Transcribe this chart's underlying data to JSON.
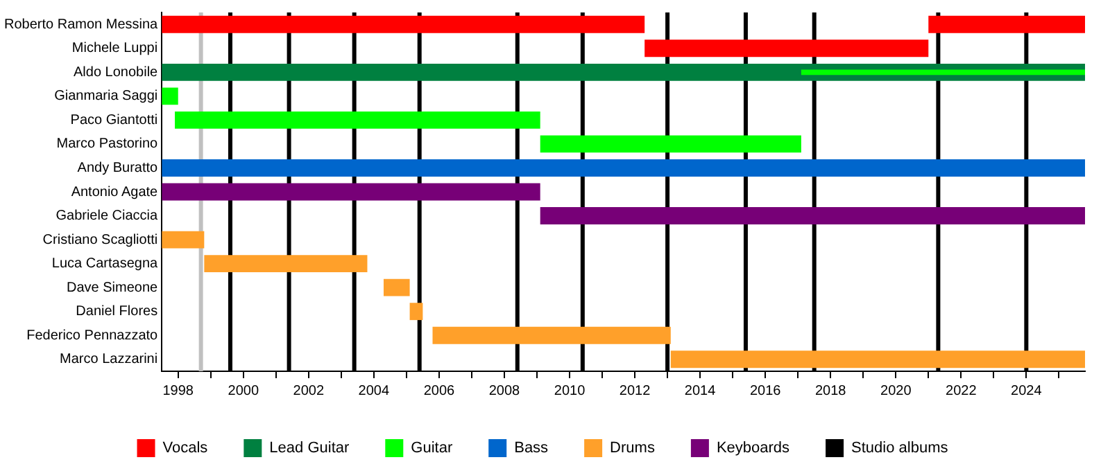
{
  "chart_data": {
    "type": "bar",
    "orientation": "horizontal",
    "categories": [
      "Roberto Ramon Messina",
      "Michele Luppi",
      "Aldo Lonobile",
      "Gianmaria Saggi",
      "Paco Giantotti",
      "Marco Pastorino",
      "Andy Buratto",
      "Antonio Agate",
      "Gabriele Ciaccia",
      "Cristiano Scagliotti",
      "Luca Cartasegna",
      "Dave Simeone",
      "Daniel Flores",
      "Federico Pennazzato",
      "Marco Lazzarini"
    ],
    "series": [
      {
        "name": "Vocals",
        "color": "#ff0000",
        "base": [
          1997.5,
          2012.3,
          null,
          null,
          null,
          null,
          null,
          null,
          null,
          null,
          null,
          null,
          null,
          null,
          null
        ],
        "values": [
          14.8,
          8.7,
          null,
          null,
          null,
          null,
          null,
          null,
          null,
          null,
          null,
          null,
          null,
          null,
          null
        ]
      },
      {
        "color": "#ff0000",
        "base": [
          2021.0,
          null,
          null,
          null,
          null,
          null,
          null,
          null,
          null,
          null,
          null,
          null,
          null,
          null,
          null
        ],
        "values": [
          4.8,
          null,
          null,
          null,
          null,
          null,
          null,
          null,
          null,
          null,
          null,
          null,
          null,
          null,
          null
        ]
      },
      {
        "name": "Lead Guitar",
        "color": "#008040",
        "base": [
          null,
          null,
          1997.5,
          null,
          null,
          null,
          null,
          null,
          null,
          null,
          null,
          null,
          null,
          null,
          null
        ],
        "values": [
          null,
          null,
          28.3,
          null,
          null,
          null,
          null,
          null,
          null,
          null,
          null,
          null,
          null,
          null,
          null
        ]
      },
      {
        "name": "Guitar",
        "color": "#00ff00",
        "base": [
          null,
          null,
          2017.1,
          1997.5,
          1997.9,
          2009.1,
          null,
          null,
          null,
          null,
          null,
          null,
          null,
          null,
          null
        ],
        "values": [
          null,
          null,
          8.7,
          0.5,
          11.2,
          8.0,
          null,
          null,
          null,
          null,
          null,
          null,
          null,
          null,
          null
        ]
      },
      {
        "name": "Bass",
        "color": "#0066cc",
        "base": [
          null,
          null,
          null,
          null,
          null,
          null,
          1997.5,
          null,
          null,
          null,
          null,
          null,
          null,
          null,
          null
        ],
        "values": [
          null,
          null,
          null,
          null,
          null,
          null,
          28.3,
          null,
          null,
          null,
          null,
          null,
          null,
          null,
          null
        ]
      },
      {
        "name": "Drums",
        "color": "#ffa02a",
        "base": [
          null,
          null,
          null,
          null,
          null,
          null,
          null,
          null,
          null,
          1997.5,
          1998.8,
          2004.3,
          2005.1,
          2005.8,
          2013.1
        ],
        "values": [
          null,
          null,
          null,
          null,
          null,
          null,
          null,
          null,
          null,
          1.3,
          5.0,
          0.8,
          0.4,
          7.3,
          12.7
        ]
      },
      {
        "name": "Keyboards",
        "color": "#770077",
        "base": [
          null,
          null,
          null,
          null,
          null,
          null,
          null,
          1997.5,
          2009.1,
          null,
          null,
          null,
          null,
          null,
          null
        ],
        "values": [
          null,
          null,
          null,
          null,
          null,
          null,
          null,
          11.6,
          16.7,
          null,
          null,
          null,
          null,
          null,
          null
        ]
      }
    ],
    "xlim": [
      1997.5,
      2025.8
    ],
    "xticks": [
      1998,
      {
        "value": 1999,
        "label": null
      },
      2000,
      {
        "value": 2001,
        "label": null
      },
      2002,
      {
        "value": 2003,
        "label": null
      },
      2004,
      {
        "value": 2005,
        "label": null
      },
      2006,
      {
        "value": 2007,
        "label": null
      },
      2008,
      {
        "value": 2009,
        "label": null
      },
      2010,
      {
        "value": 2011,
        "label": null
      },
      2012,
      {
        "value": 2013,
        "label": null
      },
      2014,
      {
        "value": 2015,
        "label": null
      },
      2016,
      {
        "value": 2017,
        "label": null
      },
      2018,
      {
        "value": 2019,
        "label": null
      },
      2020,
      {
        "value": 2021,
        "label": null
      },
      2022,
      {
        "value": 2023,
        "label": null
      },
      2024,
      {
        "value": 2025,
        "label": null
      }
    ],
    "ref_lines": [
      {
        "axis": "x",
        "value": 1998.7,
        "color": "#c0c0c0"
      },
      {
        "axis": "x",
        "value": 1999.6,
        "label": "Studio albums",
        "color": "#000000"
      },
      {
        "axis": "x",
        "value": 2001.4,
        "color": "#000000"
      },
      {
        "axis": "x",
        "value": 2003.4,
        "color": "#000000"
      },
      {
        "axis": "x",
        "value": 2005.4,
        "color": "#000000"
      },
      {
        "axis": "x",
        "value": 2008.4,
        "color": "#000000"
      },
      {
        "axis": "x",
        "value": 2010.4,
        "color": "#000000"
      },
      {
        "axis": "x",
        "value": 2013.0,
        "color": "#000000"
      },
      {
        "axis": "x",
        "value": 2015.4,
        "color": "#000000"
      },
      {
        "axis": "x",
        "value": 2017.5,
        "color": "#000000"
      },
      {
        "axis": "x",
        "value": 2021.3,
        "color": "#000000"
      },
      {
        "axis": "x",
        "value": 2024.0,
        "color": "#000000"
      }
    ],
    "grid": false,
    "legend": "bottom"
  }
}
